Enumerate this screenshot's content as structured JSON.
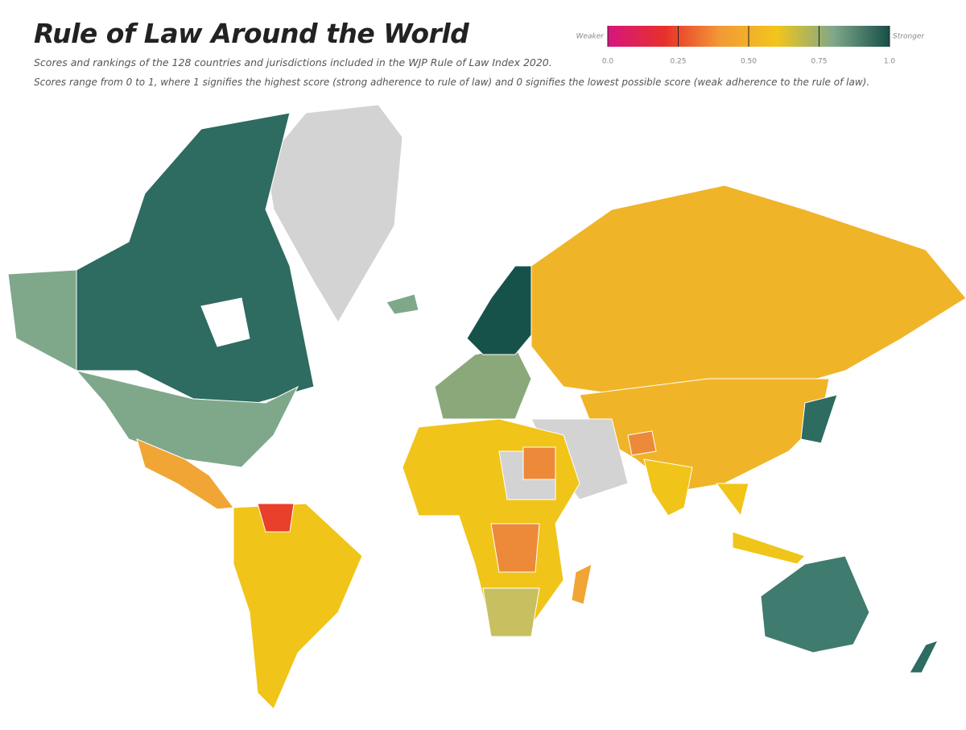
{
  "header": {
    "title": "Rule of Law Around the World",
    "subtitle": [
      "Scores and rankings of the 128 countries and jurisdictions included in the WJP Rule of Law Index 2020.",
      "Scores range from 0 to 1, where 1 signifies the highest score (strong adherence to rule of law) and 0 signifies the lowest possible score (weak adherence to the rule of law)."
    ]
  },
  "legend": {
    "low_label": "Weaker",
    "high_label": "Stronger",
    "range": [
      0,
      1
    ],
    "ticks": [
      {
        "value": 0,
        "label": "0.0"
      },
      0.25,
      {
        "value": 0.5,
        "label": "0.50"
      },
      0.75,
      {
        "value": 1,
        "label": "1.0"
      }
    ],
    "colors": [
      "#d6157f",
      "#e8302a",
      "#f29a35",
      "#f2c51c",
      "#7fa88a",
      "#174f48"
    ]
  }
}
